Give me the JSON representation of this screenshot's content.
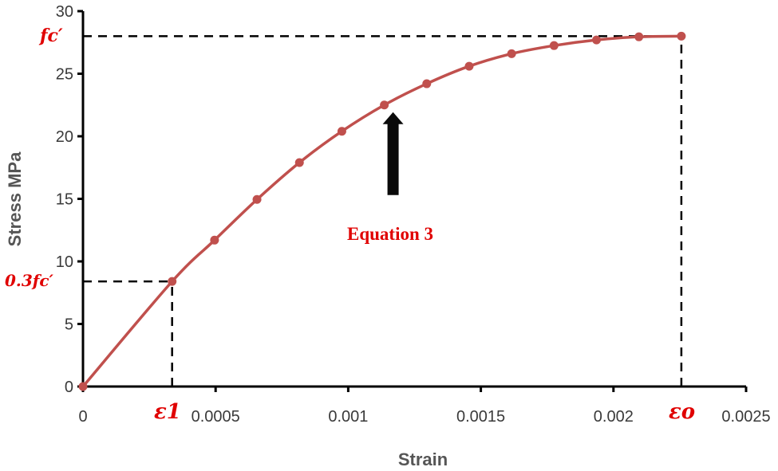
{
  "chart_data": {
    "type": "line",
    "xlabel": "Strain",
    "ylabel": "Stress  MPa",
    "xlim": [
      0,
      0.0025
    ],
    "ylim": [
      0,
      30
    ],
    "x_ticks": [
      "0",
      "0.0005",
      "0.001",
      "0.0015",
      "0.002",
      "0.0025"
    ],
    "y_ticks": [
      "0",
      "5",
      "10",
      "15",
      "20",
      "25",
      "30"
    ],
    "grid": false,
    "series": [
      {
        "color": "#c0504d",
        "x": [
          0,
          0.000336,
          0.000496,
          0.000656,
          0.000816,
          0.000976,
          0.001136,
          0.001296,
          0.001456,
          0.001616,
          0.001776,
          0.001936,
          0.002096,
          0.002256
        ],
        "y": [
          0,
          8.4,
          11.7,
          14.95,
          17.9,
          20.4,
          22.5,
          24.2,
          25.6,
          26.6,
          27.25,
          27.7,
          27.95,
          28.0
        ]
      }
    ],
    "reference_lines": [
      {
        "name": "fc-prime",
        "y": 28.0,
        "x_end": 0.002256
      },
      {
        "name": "point-three-fc-prime",
        "y": 8.4,
        "x_end": 0.000336
      },
      {
        "name": "epsilon-1",
        "x": 0.000336,
        "y_end": 8.4
      },
      {
        "name": "epsilon-o",
        "x": 0.002256,
        "y_end": 28.0
      }
    ],
    "annotations": {
      "fc_label": "fc′",
      "point_three_fc_label": "0.3fc′",
      "epsilon_1_label": "ε1",
      "epsilon_o_label": "εo",
      "equation_label": "Equation 3",
      "arrow_target": {
        "x": 0.00116,
        "y": 22.5
      }
    }
  }
}
